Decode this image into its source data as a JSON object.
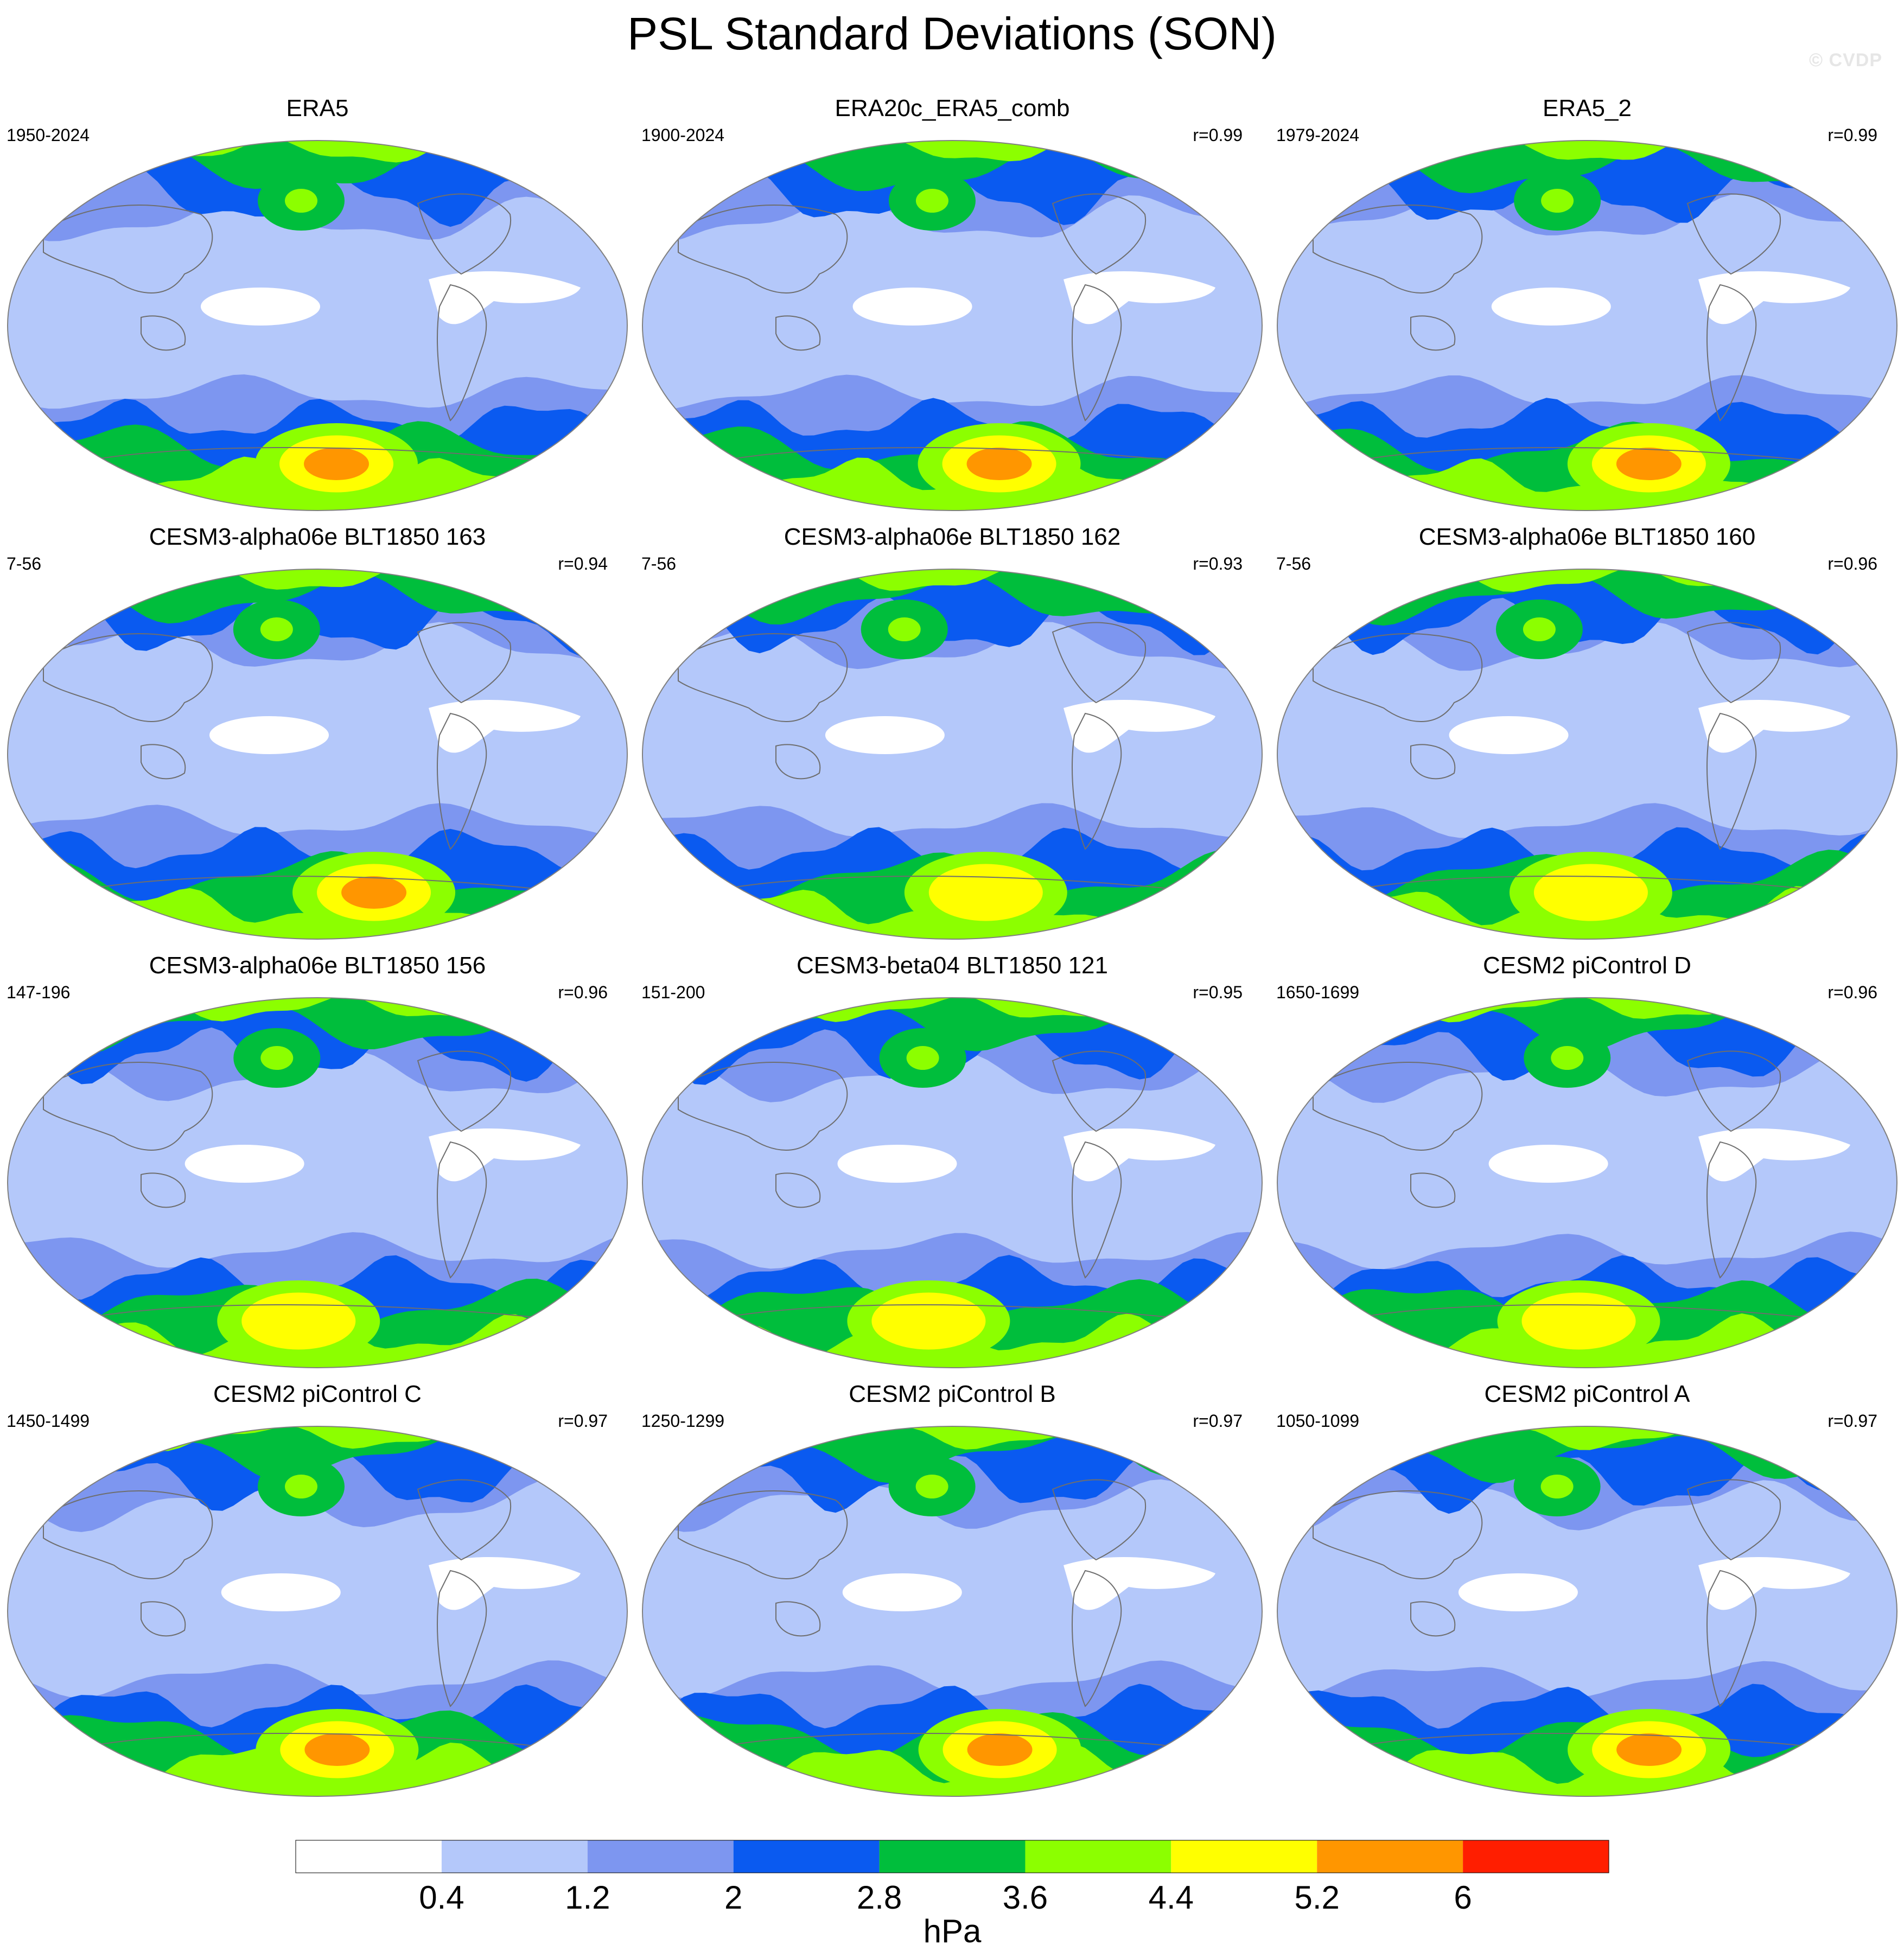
{
  "title": "PSL Standard Deviations (SON)",
  "watermark": "© CVDP",
  "colors": {
    "bins": [
      "#ffffff",
      "#b4c8fa",
      "#7d96f0",
      "#0a5af0",
      "#00be3c",
      "#8cff00",
      "#ffff00",
      "#ff9600",
      "#ff1e00"
    ],
    "coastline": "#6e6e6e",
    "map_border": "#808080"
  },
  "chart_data": {
    "type": "heatmap",
    "projection": "Robinson-like global map",
    "variable": "PSL standard deviation",
    "season": "SON",
    "colorbar": {
      "label": "hPa",
      "levels": [
        0.4,
        1.2,
        2,
        2.8,
        3.6,
        4.4,
        5.2,
        6
      ],
      "tick_labels": [
        "0.4",
        "1.2",
        "2",
        "2.8",
        "3.6",
        "4.4",
        "5.2",
        "6"
      ]
    },
    "panels": [
      {
        "title": "ERA5",
        "years": "1950-2024",
        "corr": "",
        "max_level": 7
      },
      {
        "title": "ERA20c_ERA5_comb",
        "years": "1900-2024",
        "corr": "r=0.99",
        "max_level": 7
      },
      {
        "title": "ERA5_2",
        "years": "1979-2024",
        "corr": "r=0.99",
        "max_level": 7
      },
      {
        "title": "CESM3-alpha06e BLT1850 163",
        "years": "7-56",
        "corr": "r=0.94",
        "max_level": 7
      },
      {
        "title": "CESM3-alpha06e BLT1850 162",
        "years": "7-56",
        "corr": "r=0.93",
        "max_level": 6
      },
      {
        "title": "CESM3-alpha06e BLT1850 160",
        "years": "7-56",
        "corr": "r=0.96",
        "max_level": 6
      },
      {
        "title": "CESM3-alpha06e BLT1850 156",
        "years": "147-196",
        "corr": "r=0.96",
        "max_level": 6
      },
      {
        "title": "CESM3-beta04 BLT1850 121",
        "years": "151-200",
        "corr": "r=0.95",
        "max_level": 6
      },
      {
        "title": "CESM2 piControl D",
        "years": "1650-1699",
        "corr": "r=0.96",
        "max_level": 6
      },
      {
        "title": "CESM2 piControl C",
        "years": "1450-1499",
        "corr": "r=0.97",
        "max_level": 7
      },
      {
        "title": "CESM2 piControl B",
        "years": "1250-1299",
        "corr": "r=0.97",
        "max_level": 7
      },
      {
        "title": "CESM2 piControl A",
        "years": "1050-1099",
        "corr": "r=0.97",
        "max_level": 7
      }
    ]
  }
}
